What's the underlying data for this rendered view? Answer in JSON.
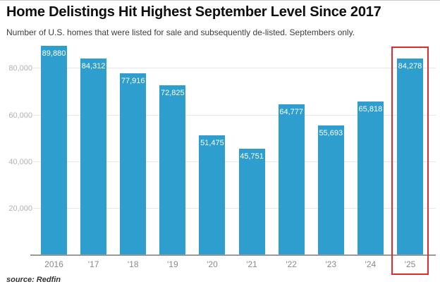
{
  "title": "Home Delistings Hit Highest September Level Since 2017",
  "subtitle": "Number of U.S. homes that were listed for sale and subsequently de-listed. Septembers only.",
  "source": "source: Redfin",
  "colors": {
    "bar": "#2d9ecd",
    "highlight_border": "#df2b2e",
    "gridline": "#e7e7e7",
    "axis_line": "#9a9a9a",
    "y_tick_text": "#b2b2b2",
    "x_tick_text": "#8a8a8a",
    "title_text": "#0e0e0e",
    "value_label_text": "#ffffff"
  },
  "chart_data": {
    "type": "bar",
    "categories": [
      "2016",
      "'17",
      "'18",
      "'19",
      "'20",
      "'21",
      "'22",
      "'23",
      "'24",
      "'25"
    ],
    "values": [
      89880,
      84312,
      77916,
      72825,
      51475,
      45751,
      64777,
      55693,
      65818,
      84278
    ],
    "value_labels": [
      "89,880",
      "84,312",
      "77,916",
      "72,825",
      "51,475",
      "45,751",
      "64,777",
      "55,693",
      "65,818",
      "84,278"
    ],
    "title": "Home Delistings Hit Highest September Level Since 2017",
    "xlabel": "",
    "ylabel": "",
    "ylim": [
      0,
      91000
    ],
    "yticks": [
      20000,
      40000,
      60000,
      80000
    ],
    "ytick_labels": [
      "20,000",
      "40,000",
      "60,000",
      "80,000"
    ],
    "grid": "horizontal",
    "legend": "none",
    "highlighted_category": "'25"
  }
}
